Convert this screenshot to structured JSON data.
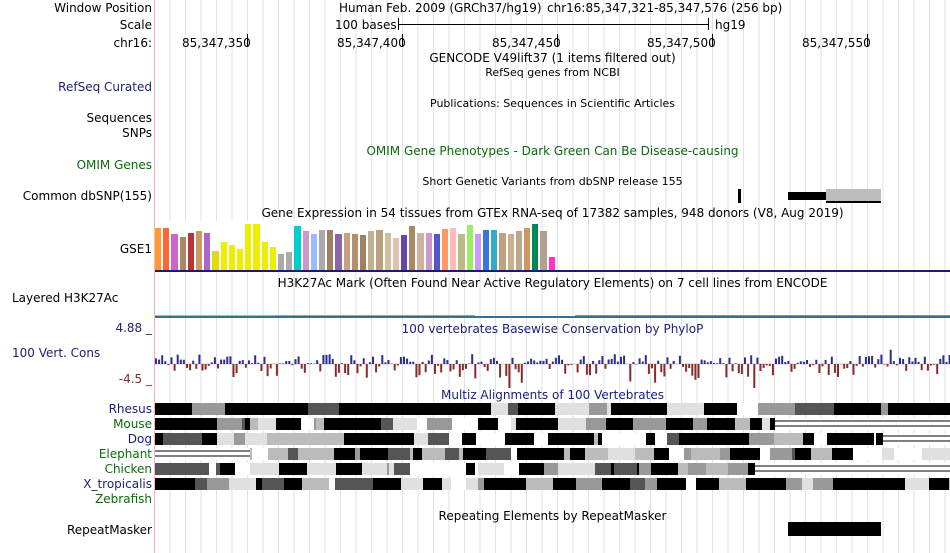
{
  "labels": {
    "window_position": "Window Position",
    "scale": "Scale",
    "chrom": "chr16:",
    "refseq": "RefSeq Curated",
    "sequences": "Sequences",
    "snps": "SNPs",
    "omim": "OMIM Genes",
    "dbsnp": "Common dbSNP(155)",
    "gse1": "GSE1",
    "h3k27": "Layered H3K27Ac",
    "vert_cons": "100 Vert. Cons",
    "cons_max": "4.88 _",
    "cons_min": "-4.5 _",
    "repeatmasker": "RepeatMasker"
  },
  "header": {
    "assembly_title": "Human Feb. 2009 (GRCh37/hg19)",
    "position": "chr16:85,347,321-85,347,576 (256 bp)",
    "scale_label": "100 bases",
    "scale_db": "hg19",
    "coords": [
      "85,347,350",
      "85,347,400",
      "85,347,450",
      "85,347,500",
      "85,347,550"
    ]
  },
  "tracks": {
    "gencode": "GENCODE V49lift37 (1 items filtered out)",
    "refseq_desc": "RefSeq genes from NCBI",
    "publications": "Publications: Sequences in Scientific Articles",
    "omim_desc": "OMIM Gene Phenotypes - Dark Green Can Be Disease-causing",
    "dbsnp_desc": "Short Genetic Variants from dbSNP release 155",
    "gtex_desc": "Gene Expression in 54 tissues from GTEx RNA-seq of 17382 samples, 948 donors (V8, Aug 2019)",
    "h3k27_desc": "H3K27Ac Mark (Often Found Near Active Regulatory Elements) on 7 cell lines from ENCODE",
    "phylop_desc": "100 vertebrates Basewise Conservation by PhyloP",
    "multiz_desc": "Multiz Alignments of 100 Vertebrates",
    "repeat_desc": "Repeating Elements by RepeatMasker"
  },
  "species": [
    "Rhesus",
    "Mouse",
    "Dog",
    "Elephant",
    "Chicken",
    "X_tropicalis",
    "Zebrafish"
  ],
  "gtex": {
    "colors": [
      "#ff9933",
      "#ff6633",
      "#cc66cc",
      "#aa8866",
      "#bb3333",
      "#cc9966",
      "#aa66cc",
      "#dddd00",
      "#eeee00",
      "#eeee00",
      "#eeee00",
      "#eeee00",
      "#eeee00",
      "#eeee00",
      "#eeee00",
      "#aaaaaa",
      "#aaaaaa",
      "#00cccc",
      "#cc99cc",
      "#99bbff",
      "#aaaaaa",
      "#a08060",
      "#8866aa",
      "#c8a080",
      "#b09070",
      "#a08060",
      "#c0b090",
      "#b8a080",
      "#d0c0a0",
      "#e0c0b0",
      "#6644aa",
      "#aa8866",
      "#d0b0a0",
      "#cc99cc",
      "#5555cc",
      "#ff9966",
      "#ffbbbb",
      "#bbbb88",
      "#99ee66",
      "#cc99ff",
      "#3377dd",
      "#33aacc",
      "#c0a080",
      "#c8b090",
      "#b8a890",
      "#cc9966",
      "#008855",
      "#b0a090",
      "#ff33cc"
    ],
    "heights": [
      0.92,
      0.92,
      0.78,
      0.72,
      0.8,
      0.85,
      0.8,
      0.42,
      0.6,
      0.55,
      0.45,
      1.0,
      1.0,
      0.6,
      0.5,
      0.35,
      0.4,
      0.95,
      0.85,
      0.78,
      0.88,
      0.88,
      0.78,
      0.8,
      0.78,
      0.75,
      0.85,
      0.88,
      0.8,
      0.7,
      0.75,
      0.95,
      0.8,
      0.8,
      0.78,
      0.9,
      0.92,
      0.78,
      0.98,
      0.78,
      0.88,
      0.88,
      0.8,
      0.78,
      0.85,
      0.92,
      1.0,
      0.85,
      0.28
    ]
  }
}
